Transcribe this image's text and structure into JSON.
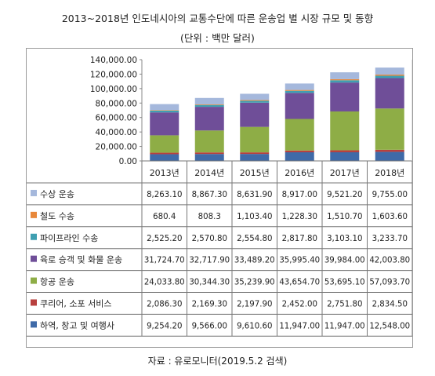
{
  "title": "2013~2018년 인도네시아의 교통수단에 따른 운송업 별 시장 규모 및 동향",
  "subtitle": "(단위 : 백만 달러)",
  "source": "자료 : 유로모니터(2019.5.2 검색)",
  "colors": {
    "수상 운송": "#a5b8dc",
    "철도 수송": "#e8883a",
    "파이프라인 수송": "#3f9fb1",
    "육로 승객 및 화물 운송": "#6f4e98",
    "항공 운송": "#8ead46",
    "쿠리어, 소포 서비스": "#b8403e",
    "하역, 창고 및 여행사": "#3f6aa8"
  },
  "chart_data": {
    "type": "bar",
    "stacked": true,
    "categories": [
      "2013년",
      "2014년",
      "2015년",
      "2016년",
      "2017년",
      "2018년"
    ],
    "ylim": [
      0,
      140000
    ],
    "yticks": [
      "140,000.00",
      "120,000.00",
      "100,000.00",
      "80,000.00",
      "60,000.00",
      "40,000.00",
      "20,000.00",
      "0.00"
    ],
    "series": [
      {
        "name": "하역, 창고 및 여행사",
        "values": [
          9254.2,
          9566.0,
          9610.6,
          11947.0,
          11947.0,
          12548.0
        ],
        "labels": [
          "9,254.20",
          "9,566.00",
          "9,610.60",
          "11,947.00",
          "11,947.00",
          "12,548.00"
        ]
      },
      {
        "name": "쿠리어, 소포 서비스",
        "values": [
          2086.3,
          2169.3,
          2197.9,
          2452.0,
          2751.8,
          2834.5
        ],
        "labels": [
          "2,086.30",
          "2,169.30",
          "2,197.90",
          "2,452.00",
          "2,751.80",
          "2,834.50"
        ]
      },
      {
        "name": "항공 운송",
        "values": [
          24033.8,
          30344.3,
          35239.9,
          43654.7,
          53695.1,
          57093.7
        ],
        "labels": [
          "24,033.80",
          "30,344.30",
          "35,239.90",
          "43,654.70",
          "53,695.10",
          "57,093.70"
        ]
      },
      {
        "name": "육로 승객 및 화물 운송",
        "values": [
          31724.7,
          32717.9,
          33489.2,
          35995.4,
          39984.0,
          42003.8
        ],
        "labels": [
          "31,724.70",
          "32,717.90",
          "33,489.20",
          "35,995.40",
          "39,984.00",
          "42,003.80"
        ]
      },
      {
        "name": "파이프라인 수송",
        "values": [
          2525.2,
          2570.8,
          2554.8,
          2817.8,
          3103.1,
          3233.7
        ],
        "labels": [
          "2,525.20",
          "2,570.80",
          "2,554.80",
          "2,817.80",
          "3,103.10",
          "3,233.70"
        ]
      },
      {
        "name": "철도 수송",
        "values": [
          680.4,
          808.3,
          1103.4,
          1228.3,
          1510.7,
          1603.6
        ],
        "labels": [
          "680.4",
          "808.3",
          "1,103.40",
          "1,228.30",
          "1,510.70",
          "1,603.60"
        ]
      },
      {
        "name": "수상 운송",
        "values": [
          8263.1,
          8867.3,
          8631.9,
          8917.0,
          9521.2,
          9755.0
        ],
        "labels": [
          "8,263.10",
          "8,867.30",
          "8,631.90",
          "8,917.00",
          "9,521.20",
          "9,755.00"
        ]
      }
    ]
  }
}
